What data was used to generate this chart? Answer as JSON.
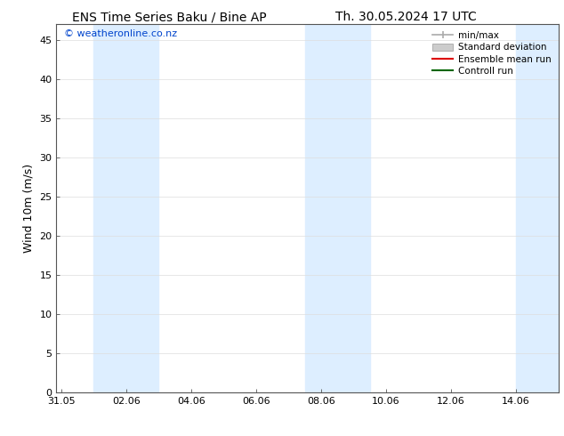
{
  "title_left": "ENS Time Series Baku / Bine AP",
  "title_right": "Th. 30.05.2024 17 UTC",
  "ylabel": "Wind 10m (m/s)",
  "watermark": "© weatheronline.co.nz",
  "ylim": [
    0,
    47
  ],
  "yticks": [
    0,
    5,
    10,
    15,
    20,
    25,
    30,
    35,
    40,
    45
  ],
  "xtick_labels": [
    "31.05",
    "02.06",
    "04.06",
    "06.06",
    "08.06",
    "10.06",
    "12.06",
    "14.06"
  ],
  "xtick_positions": [
    0,
    2,
    4,
    6,
    8,
    10,
    12,
    14
  ],
  "xlim_start": -0.15,
  "xlim_end": 15.3,
  "shaded_bands": [
    {
      "x_start": 1.0,
      "x_end": 3.0
    },
    {
      "x_start": 7.5,
      "x_end": 9.5
    },
    {
      "x_start": 14.0,
      "x_end": 15.3
    }
  ],
  "shade_color": "#ddeeff",
  "background_color": "#ffffff",
  "legend_labels": [
    "min/max",
    "Standard deviation",
    "Ensemble mean run",
    "Controll run"
  ],
  "legend_colors": [
    "#aaaaaa",
    "#cccccc",
    "#dd0000",
    "#006600"
  ],
  "title_fontsize": 10,
  "axis_label_fontsize": 9,
  "tick_fontsize": 8,
  "watermark_color": "#0044cc",
  "watermark_fontsize": 8,
  "grid_color": "#dddddd",
  "spine_color": "#555555"
}
